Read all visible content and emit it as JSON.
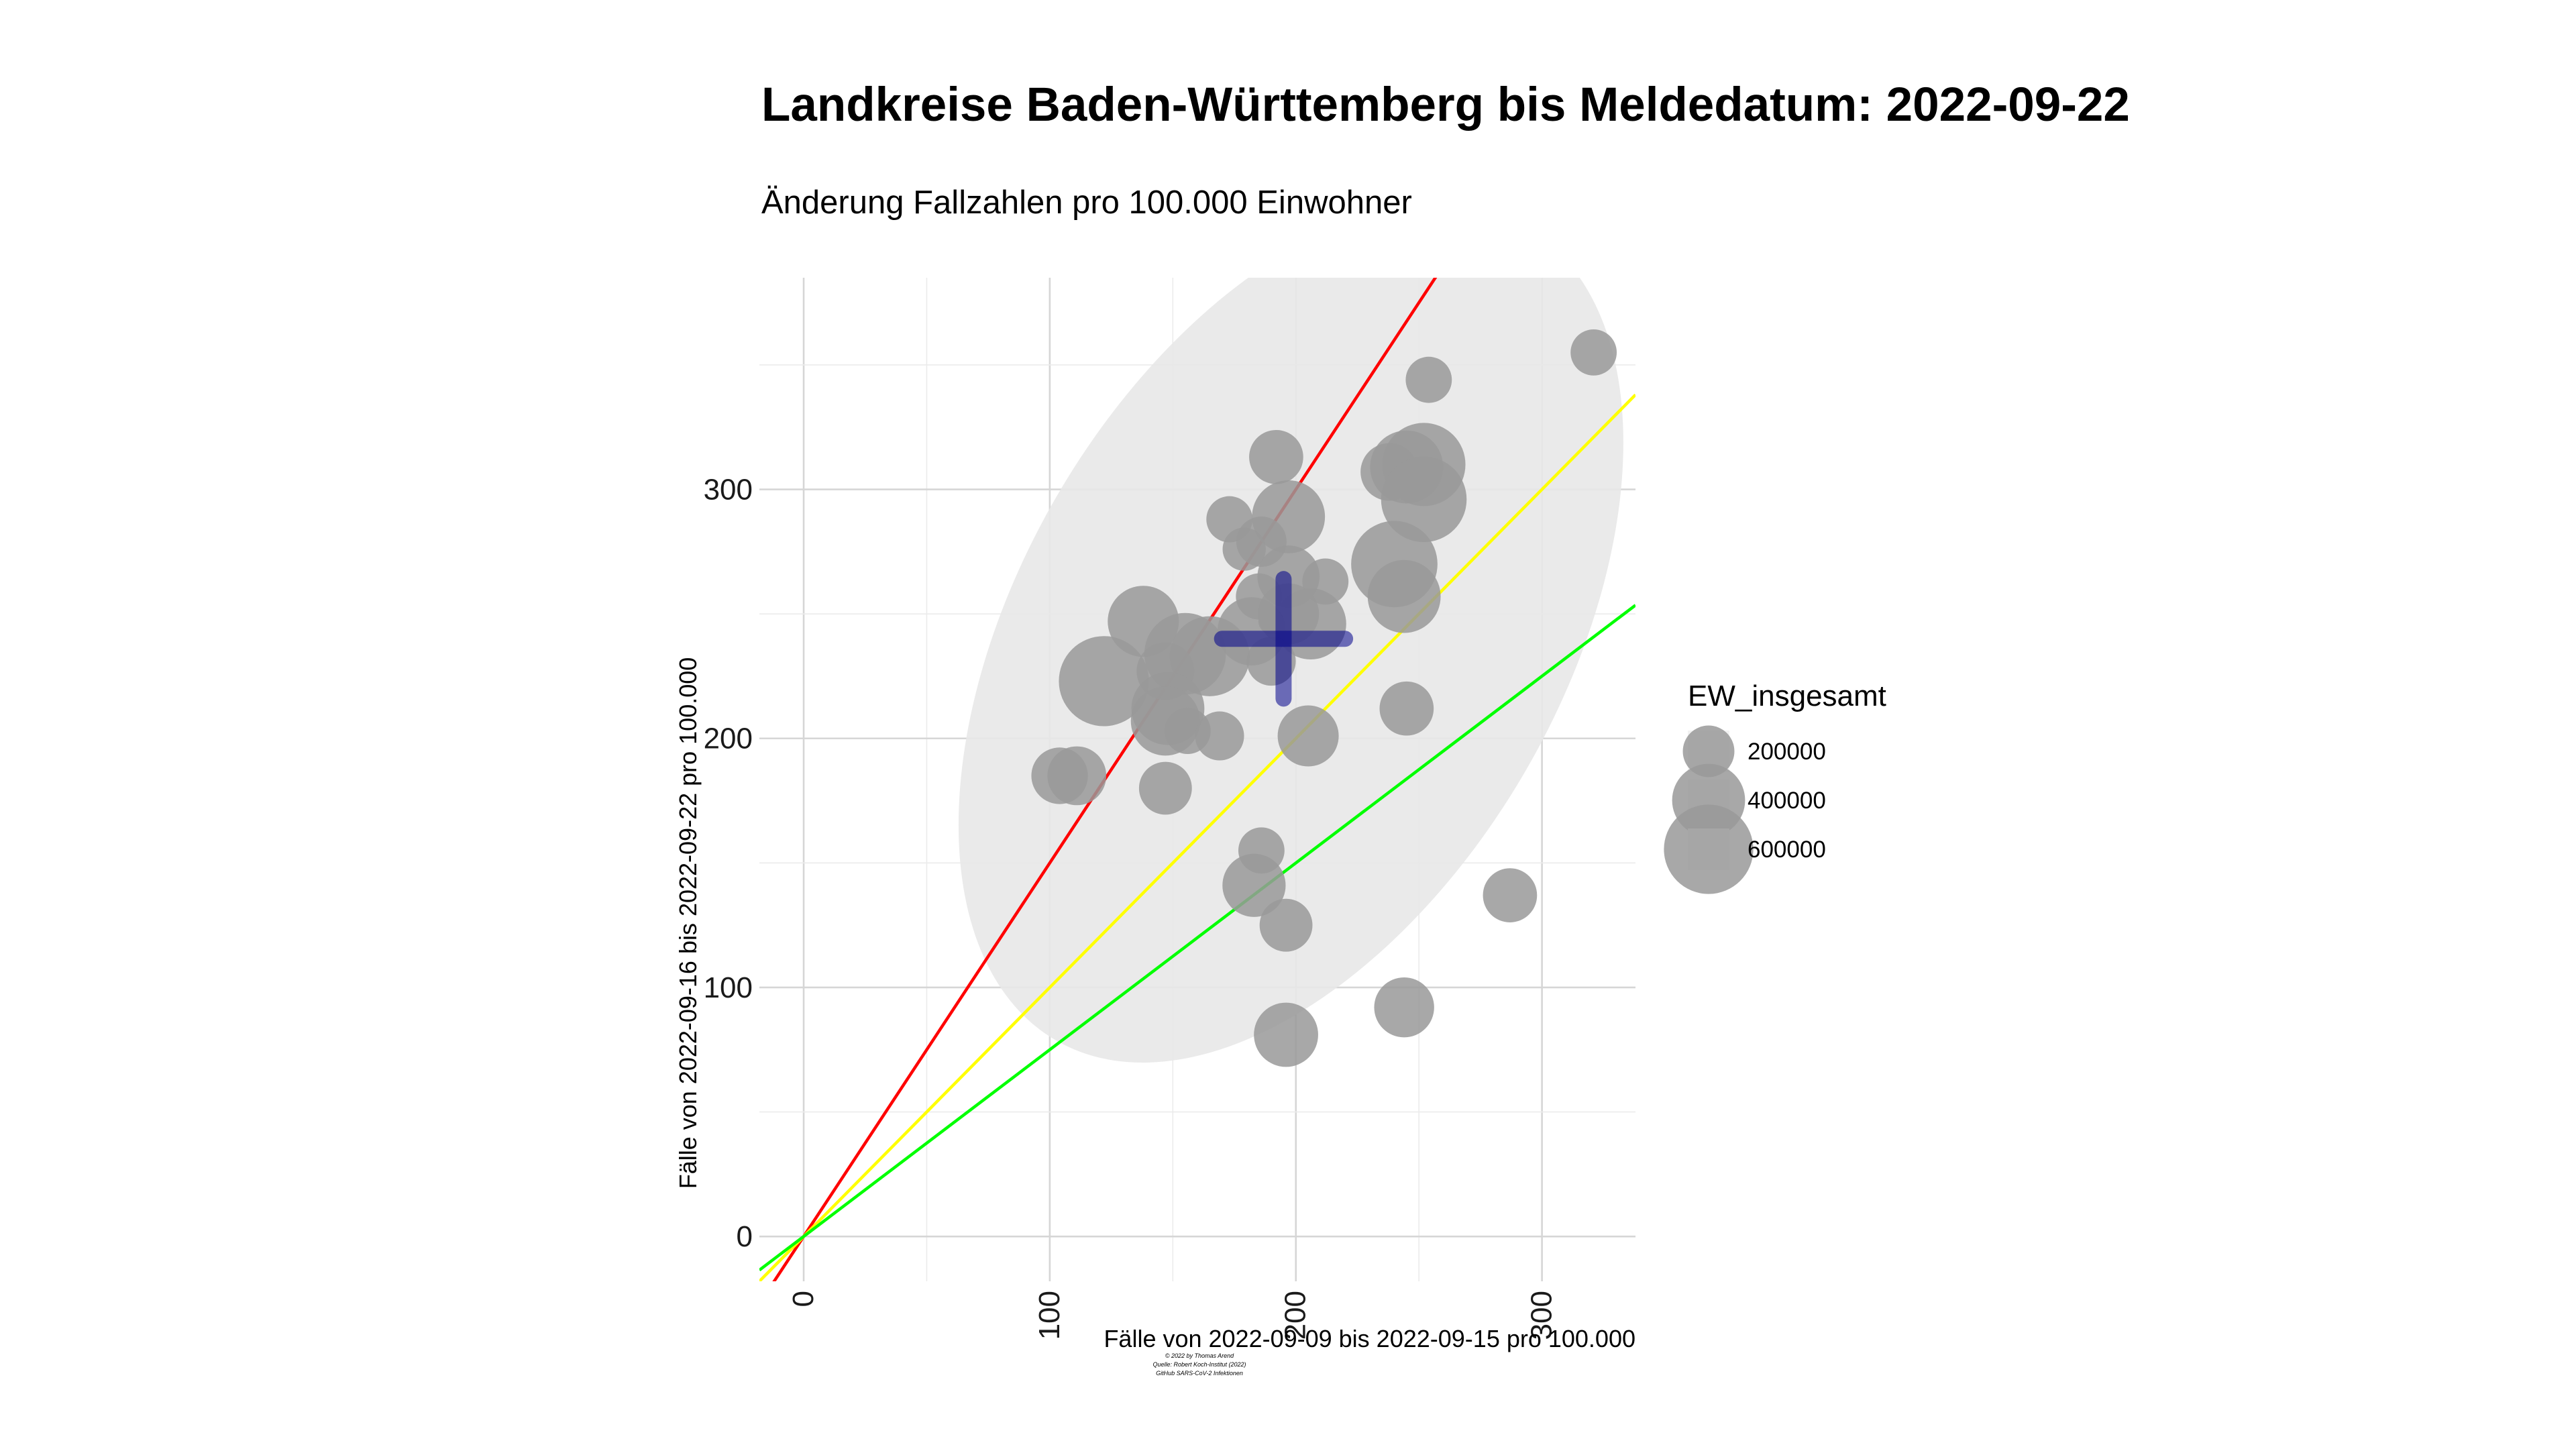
{
  "chart_data": {
    "type": "scatter",
    "title": "Landkreise Baden-Württemberg bis Meldedatum: 2022-09-22",
    "subtitle": "Änderung Fallzahlen pro 100.000 Einwohner",
    "xlabel": "Fälle von 2022-09-09 bis 2022-09-15 pro 100.000",
    "ylabel": "Fälle von 2022-09-16 bis 2022-09-22 pro 100.000",
    "xlim": [
      -18,
      338
    ],
    "ylim": [
      -18,
      385
    ],
    "x_ticks": [
      0,
      100,
      200,
      300
    ],
    "y_ticks": [
      0,
      100,
      200,
      300
    ],
    "grid": true,
    "legend": {
      "title": "EW_insgesamt",
      "position": "right",
      "entries": [
        {
          "label": "200000",
          "value": 200000
        },
        {
          "label": "400000",
          "value": 400000
        },
        {
          "label": "600000",
          "value": 600000
        }
      ]
    },
    "point_color": "#999999",
    "reference_lines": [
      {
        "slope": 1.5,
        "color": "#ff0000"
      },
      {
        "slope": 1.0,
        "color": "#ffff00"
      },
      {
        "slope": 0.75,
        "color": "#00ff00"
      }
    ],
    "ellipse": {
      "center": [
        198,
        242
      ],
      "fill": "#e8e8e8"
    },
    "mean_marker": {
      "x": 195,
      "y": 240,
      "x_range": [
        170,
        220
      ],
      "y_range": [
        216,
        264
      ],
      "color": "#00008b"
    },
    "points": [
      {
        "x": 321,
        "y": 355,
        "size": 160000
      },
      {
        "x": 254,
        "y": 344,
        "size": 160000
      },
      {
        "x": 192,
        "y": 313,
        "size": 220000
      },
      {
        "x": 238,
        "y": 307,
        "size": 250000
      },
      {
        "x": 245,
        "y": 309,
        "size": 400000
      },
      {
        "x": 252,
        "y": 310,
        "size": 520000
      },
      {
        "x": 252,
        "y": 296,
        "size": 550000
      },
      {
        "x": 173,
        "y": 288,
        "size": 160000
      },
      {
        "x": 197,
        "y": 289,
        "size": 400000
      },
      {
        "x": 186,
        "y": 279,
        "size": 190000
      },
      {
        "x": 179,
        "y": 276,
        "size": 140000
      },
      {
        "x": 240,
        "y": 270,
        "size": 560000
      },
      {
        "x": 197,
        "y": 265,
        "size": 290000
      },
      {
        "x": 212,
        "y": 263,
        "size": 160000
      },
      {
        "x": 244,
        "y": 257,
        "size": 400000
      },
      {
        "x": 185,
        "y": 257,
        "size": 160000
      },
      {
        "x": 197,
        "y": 250,
        "size": 280000
      },
      {
        "x": 206,
        "y": 246,
        "size": 380000
      },
      {
        "x": 138,
        "y": 247,
        "size": 380000
      },
      {
        "x": 190,
        "y": 247,
        "size": 50000
      },
      {
        "x": 182,
        "y": 243,
        "size": 350000
      },
      {
        "x": 155,
        "y": 234,
        "size": 500000
      },
      {
        "x": 165,
        "y": 233,
        "size": 480000
      },
      {
        "x": 190,
        "y": 231,
        "size": 180000
      },
      {
        "x": 147,
        "y": 227,
        "size": 250000
      },
      {
        "x": 122,
        "y": 223,
        "size": 610000
      },
      {
        "x": 148,
        "y": 212,
        "size": 400000
      },
      {
        "x": 147,
        "y": 207,
        "size": 360000
      },
      {
        "x": 245,
        "y": 212,
        "size": 220000
      },
      {
        "x": 156,
        "y": 203,
        "size": 160000
      },
      {
        "x": 169,
        "y": 201,
        "size": 180000
      },
      {
        "x": 205,
        "y": 201,
        "size": 280000
      },
      {
        "x": 104,
        "y": 185,
        "size": 240000
      },
      {
        "x": 111,
        "y": 185,
        "size": 260000
      },
      {
        "x": 147,
        "y": 180,
        "size": 210000
      },
      {
        "x": 186,
        "y": 155,
        "size": 160000
      },
      {
        "x": 183,
        "y": 141,
        "size": 300000
      },
      {
        "x": 287,
        "y": 137,
        "size": 220000
      },
      {
        "x": 196,
        "y": 125,
        "size": 210000
      },
      {
        "x": 244,
        "y": 92,
        "size": 270000
      },
      {
        "x": 196,
        "y": 81,
        "size": 310000
      }
    ],
    "caption": [
      "© 2022 by Thomas Arend",
      "Quelle: Robert Koch-Institut (2022)",
      "GitHub SARS-CoV-2 Infektionen"
    ]
  }
}
